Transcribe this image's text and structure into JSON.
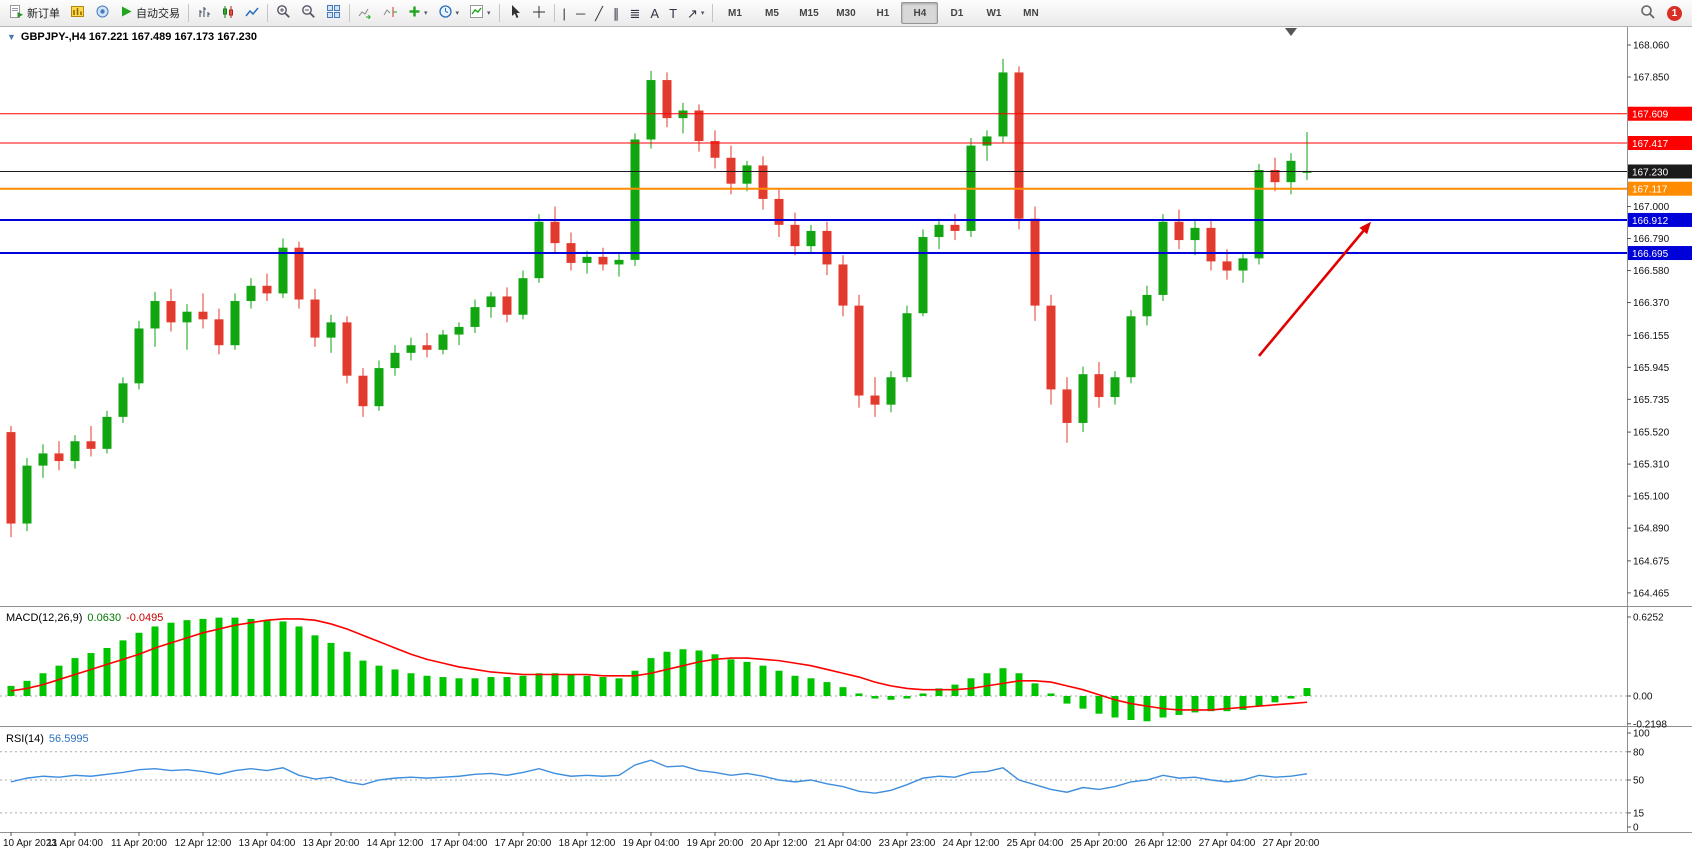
{
  "toolbar": {
    "new_order_label": "新订单",
    "auto_trading_label": "自动交易",
    "timeframes": [
      "M1",
      "M5",
      "M15",
      "M30",
      "H1",
      "H4",
      "D1",
      "W1",
      "MN"
    ],
    "active_timeframe": "H4",
    "notification_count": "1"
  },
  "chart_data": {
    "type": "candlestick",
    "symbol": "GBPJPY-",
    "timeframe": "H4",
    "title": "GBPJPY-,H4 167.221 167.489 167.173 167.230",
    "ohlc": {
      "open": 167.221,
      "high": 167.489,
      "low": 167.173,
      "close": 167.23
    },
    "colors": {
      "bull": "#12A512",
      "bear": "#E23B2E",
      "macd_hist": "#00C400",
      "macd_signal": "#FF0000",
      "rsi_line": "#3E8EDE",
      "arrow": "#E00000",
      "tag_text": "#FFFFFF"
    },
    "price_ticks": [
      "168.060",
      "167.850",
      "167.000",
      "166.790",
      "166.580",
      "166.370",
      "166.155",
      "165.945",
      "165.735",
      "165.520",
      "165.310",
      "165.100",
      "164.890",
      "164.675",
      "164.465"
    ],
    "hlines": [
      {
        "price": 167.609,
        "label": "167.609",
        "color": "#FF0000",
        "width": 1
      },
      {
        "price": 167.417,
        "label": "167.417",
        "color": "#FF0000",
        "width": 1
      },
      {
        "price": 167.23,
        "label": "167.230",
        "color": "#1A1A1A",
        "width": 1
      },
      {
        "price": 167.117,
        "label": "167.117",
        "color": "#FF8C00",
        "width": 2
      },
      {
        "price": 166.912,
        "label": "166.912",
        "color": "#0000D8",
        "width": 2
      },
      {
        "price": 166.695,
        "label": "166.695",
        "color": "#0000D8",
        "width": 2
      }
    ],
    "x_labels": [
      "10 Apr 2023",
      "11 Apr 04:00",
      "11 Apr 20:00",
      "12 Apr 12:00",
      "13 Apr 04:00",
      "13 Apr 20:00",
      "14 Apr 12:00",
      "17 Apr 04:00",
      "17 Apr 20:00",
      "18 Apr 12:00",
      "19 Apr 04:00",
      "19 Apr 20:00",
      "20 Apr 12:00",
      "21 Apr 04:00",
      "23 Apr 23:00",
      "24 Apr 12:00",
      "25 Apr 04:00",
      "25 Apr 20:00",
      "26 Apr 12:00",
      "27 Apr 04:00",
      "27 Apr 20:00"
    ],
    "candles": [
      [
        165.52,
        165.56,
        164.83,
        164.92
      ],
      [
        164.92,
        165.35,
        164.87,
        165.3
      ],
      [
        165.3,
        165.44,
        165.22,
        165.38
      ],
      [
        165.38,
        165.46,
        165.27,
        165.33
      ],
      [
        165.33,
        165.5,
        165.28,
        165.46
      ],
      [
        165.46,
        165.56,
        165.36,
        165.41
      ],
      [
        165.41,
        165.66,
        165.38,
        165.62
      ],
      [
        165.62,
        165.88,
        165.58,
        165.84
      ],
      [
        165.84,
        166.25,
        165.8,
        166.2
      ],
      [
        166.2,
        166.44,
        166.08,
        166.38
      ],
      [
        166.38,
        166.46,
        166.18,
        166.24
      ],
      [
        166.24,
        166.36,
        166.06,
        166.31
      ],
      [
        166.31,
        166.43,
        166.2,
        166.26
      ],
      [
        166.26,
        166.33,
        166.03,
        166.09
      ],
      [
        166.09,
        166.43,
        166.06,
        166.38
      ],
      [
        166.38,
        166.53,
        166.33,
        166.48
      ],
      [
        166.48,
        166.56,
        166.38,
        166.43
      ],
      [
        166.43,
        166.79,
        166.4,
        166.73
      ],
      [
        166.73,
        166.77,
        166.33,
        166.39
      ],
      [
        166.39,
        166.46,
        166.08,
        166.14
      ],
      [
        166.14,
        166.29,
        166.04,
        166.24
      ],
      [
        166.24,
        166.28,
        165.84,
        165.89
      ],
      [
        165.89,
        165.94,
        165.62,
        165.69
      ],
      [
        165.69,
        165.99,
        165.66,
        165.94
      ],
      [
        165.94,
        166.09,
        165.89,
        166.04
      ],
      [
        166.04,
        166.14,
        165.99,
        166.09
      ],
      [
        166.09,
        166.17,
        166.01,
        166.06
      ],
      [
        166.06,
        166.19,
        166.03,
        166.16
      ],
      [
        166.16,
        166.24,
        166.09,
        166.21
      ],
      [
        166.21,
        166.39,
        166.17,
        166.34
      ],
      [
        166.34,
        166.44,
        166.27,
        166.41
      ],
      [
        166.41,
        166.47,
        166.24,
        166.29
      ],
      [
        166.29,
        166.58,
        166.26,
        166.53
      ],
      [
        166.53,
        166.95,
        166.5,
        166.9
      ],
      [
        166.9,
        167.0,
        166.7,
        166.76
      ],
      [
        166.76,
        166.83,
        166.58,
        166.63
      ],
      [
        166.63,
        166.71,
        166.56,
        166.67
      ],
      [
        166.67,
        166.73,
        166.58,
        166.62
      ],
      [
        166.62,
        166.69,
        166.54,
        166.65
      ],
      [
        166.65,
        167.48,
        166.61,
        167.44
      ],
      [
        167.44,
        167.89,
        167.38,
        167.83
      ],
      [
        167.83,
        167.88,
        167.52,
        167.58
      ],
      [
        167.58,
        167.68,
        167.48,
        167.63
      ],
      [
        167.63,
        167.67,
        167.36,
        167.43
      ],
      [
        167.43,
        167.5,
        167.25,
        167.32
      ],
      [
        167.32,
        167.4,
        167.08,
        167.15
      ],
      [
        167.15,
        167.3,
        167.1,
        167.27
      ],
      [
        167.27,
        167.33,
        166.98,
        167.05
      ],
      [
        167.05,
        167.12,
        166.8,
        166.88
      ],
      [
        166.88,
        166.96,
        166.68,
        166.74
      ],
      [
        166.74,
        166.88,
        166.7,
        166.84
      ],
      [
        166.84,
        166.9,
        166.55,
        166.62
      ],
      [
        166.62,
        166.68,
        166.28,
        166.35
      ],
      [
        166.35,
        166.42,
        165.68,
        165.76
      ],
      [
        165.76,
        165.88,
        165.62,
        165.7
      ],
      [
        165.7,
        165.92,
        165.65,
        165.88
      ],
      [
        165.88,
        166.35,
        165.85,
        166.3
      ],
      [
        166.3,
        166.85,
        166.28,
        166.8
      ],
      [
        166.8,
        166.92,
        166.72,
        166.88
      ],
      [
        166.88,
        166.95,
        166.78,
        166.84
      ],
      [
        166.84,
        167.45,
        166.8,
        167.4
      ],
      [
        167.4,
        167.5,
        167.3,
        167.46
      ],
      [
        167.46,
        167.97,
        167.42,
        167.88
      ],
      [
        167.88,
        167.92,
        166.85,
        166.92
      ],
      [
        166.92,
        167.0,
        166.25,
        166.35
      ],
      [
        166.35,
        166.42,
        165.7,
        165.8
      ],
      [
        165.8,
        165.88,
        165.45,
        165.58
      ],
      [
        165.58,
        165.95,
        165.52,
        165.9
      ],
      [
        165.9,
        165.98,
        165.68,
        165.75
      ],
      [
        165.75,
        165.92,
        165.7,
        165.88
      ],
      [
        165.88,
        166.32,
        165.84,
        166.28
      ],
      [
        166.28,
        166.48,
        166.22,
        166.42
      ],
      [
        166.42,
        166.95,
        166.38,
        166.9
      ],
      [
        166.9,
        166.98,
        166.72,
        166.78
      ],
      [
        166.78,
        166.92,
        166.68,
        166.86
      ],
      [
        166.86,
        166.92,
        166.58,
        166.64
      ],
      [
        166.64,
        166.72,
        166.52,
        166.58
      ],
      [
        166.58,
        166.7,
        166.5,
        166.66
      ],
      [
        166.66,
        167.28,
        166.62,
        167.24
      ],
      [
        167.24,
        167.32,
        167.1,
        167.16
      ],
      [
        167.16,
        167.35,
        167.08,
        167.3
      ],
      [
        167.221,
        167.489,
        167.173,
        167.23
      ]
    ],
    "macd": {
      "label": "MACD(12,26,9)",
      "value": "0.0630",
      "signal_value": "-0.0495",
      "axis_ticks": [
        "0.6252",
        "0.00",
        "-0.2198"
      ],
      "axis_values": [
        0.6252,
        0,
        -0.2198
      ],
      "hist": [
        0.08,
        0.12,
        0.18,
        0.24,
        0.3,
        0.34,
        0.38,
        0.44,
        0.5,
        0.55,
        0.58,
        0.6,
        0.61,
        0.62,
        0.62,
        0.61,
        0.6,
        0.59,
        0.55,
        0.48,
        0.42,
        0.35,
        0.28,
        0.24,
        0.21,
        0.18,
        0.16,
        0.15,
        0.14,
        0.14,
        0.15,
        0.15,
        0.16,
        0.18,
        0.18,
        0.17,
        0.16,
        0.15,
        0.14,
        0.2,
        0.3,
        0.35,
        0.37,
        0.36,
        0.33,
        0.29,
        0.27,
        0.24,
        0.2,
        0.16,
        0.14,
        0.11,
        0.07,
        0.02,
        -0.02,
        -0.03,
        -0.02,
        0.02,
        0.06,
        0.09,
        0.14,
        0.18,
        0.22,
        0.18,
        0.1,
        0.02,
        -0.06,
        -0.1,
        -0.14,
        -0.17,
        -0.19,
        -0.2,
        -0.17,
        -0.15,
        -0.13,
        -0.12,
        -0.12,
        -0.11,
        -0.08,
        -0.05,
        -0.02,
        0.063
      ],
      "signal": [
        0.04,
        0.06,
        0.09,
        0.13,
        0.17,
        0.21,
        0.25,
        0.29,
        0.33,
        0.38,
        0.42,
        0.46,
        0.5,
        0.53,
        0.56,
        0.58,
        0.6,
        0.61,
        0.61,
        0.6,
        0.57,
        0.53,
        0.48,
        0.43,
        0.38,
        0.33,
        0.29,
        0.26,
        0.23,
        0.21,
        0.19,
        0.18,
        0.17,
        0.17,
        0.17,
        0.17,
        0.17,
        0.16,
        0.16,
        0.16,
        0.18,
        0.21,
        0.24,
        0.27,
        0.29,
        0.3,
        0.3,
        0.29,
        0.28,
        0.26,
        0.24,
        0.21,
        0.18,
        0.15,
        0.11,
        0.08,
        0.06,
        0.05,
        0.05,
        0.05,
        0.06,
        0.08,
        0.1,
        0.12,
        0.12,
        0.11,
        0.08,
        0.05,
        0.01,
        -0.03,
        -0.06,
        -0.08,
        -0.1,
        -0.11,
        -0.11,
        -0.11,
        -0.1,
        -0.09,
        -0.08,
        -0.07,
        -0.06,
        -0.0495
      ]
    },
    "rsi": {
      "label": "RSI(14)",
      "value": "56.5995",
      "axis_ticks": [
        "100",
        "80",
        "50",
        "15",
        "0"
      ],
      "axis_values": [
        100,
        80,
        50,
        15,
        0
      ],
      "levels": [
        80,
        50,
        15
      ],
      "values": [
        48,
        52,
        54,
        53,
        55,
        54,
        56,
        58,
        61,
        62,
        60,
        61,
        59,
        56,
        60,
        62,
        60,
        63,
        55,
        51,
        53,
        48,
        45,
        50,
        52,
        53,
        52,
        53,
        54,
        56,
        57,
        55,
        58,
        62,
        57,
        54,
        55,
        54,
        55,
        66,
        71,
        64,
        65,
        60,
        58,
        55,
        57,
        54,
        50,
        48,
        50,
        46,
        43,
        38,
        36,
        39,
        45,
        52,
        54,
        53,
        58,
        59,
        63,
        50,
        45,
        40,
        37,
        42,
        40,
        43,
        48,
        50,
        55,
        52,
        53,
        50,
        48,
        50,
        55,
        53,
        54,
        56.5995
      ]
    },
    "arrow_annotation": {
      "from_index": 78,
      "from_price": 166.02,
      "to_index": 85,
      "to_price": 166.9
    }
  }
}
